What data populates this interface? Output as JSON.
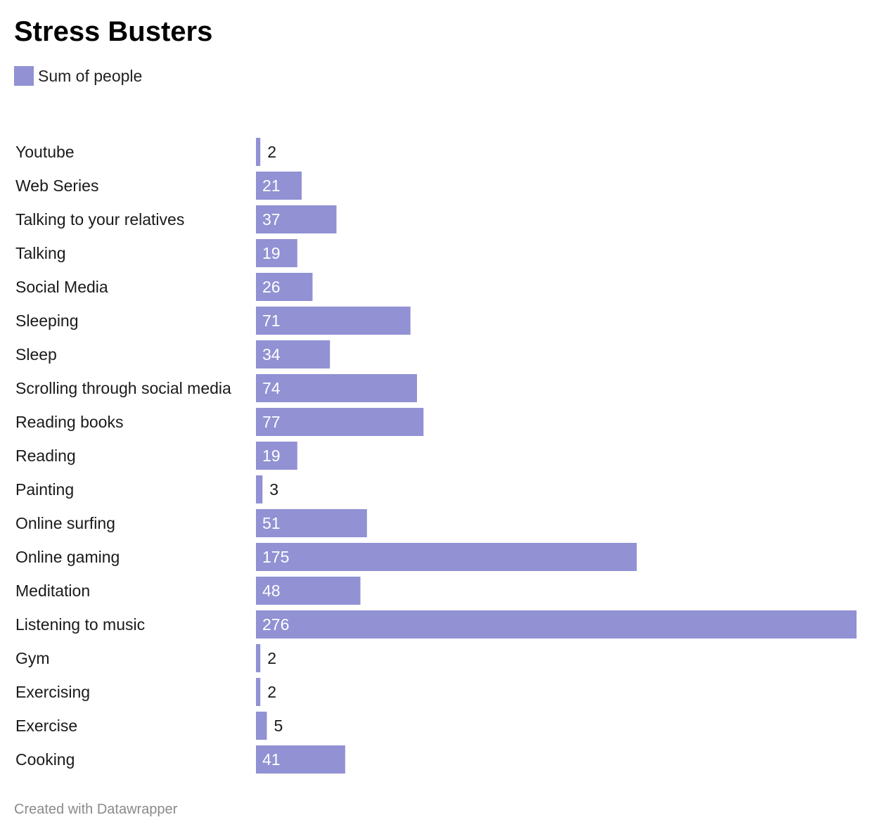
{
  "title": "Stress Busters",
  "legend": {
    "label": "Sum of people",
    "color": "#9191d4"
  },
  "footer": "Created with Datawrapper",
  "chart_data": {
    "type": "bar",
    "orientation": "horizontal",
    "title": "Stress Busters",
    "categories": [
      "Youtube",
      "Web Series",
      "Talking to your relatives",
      "Talking",
      "Social Media",
      "Sleeping",
      "Sleep",
      "Scrolling through social media",
      "Reading books",
      "Reading",
      "Painting",
      "Online surfing",
      "Online gaming",
      "Meditation",
      "Listening to music",
      "Gym",
      "Exercising",
      "Exercise",
      "Cooking"
    ],
    "series": [
      {
        "name": "Sum of people",
        "color": "#9191d4",
        "values": [
          2,
          21,
          37,
          19,
          26,
          71,
          34,
          74,
          77,
          19,
          3,
          51,
          175,
          48,
          276,
          2,
          2,
          5,
          41
        ]
      }
    ],
    "xlim": [
      0,
      276
    ],
    "grid": false,
    "legend_position": "top-left",
    "data_labels": true
  }
}
